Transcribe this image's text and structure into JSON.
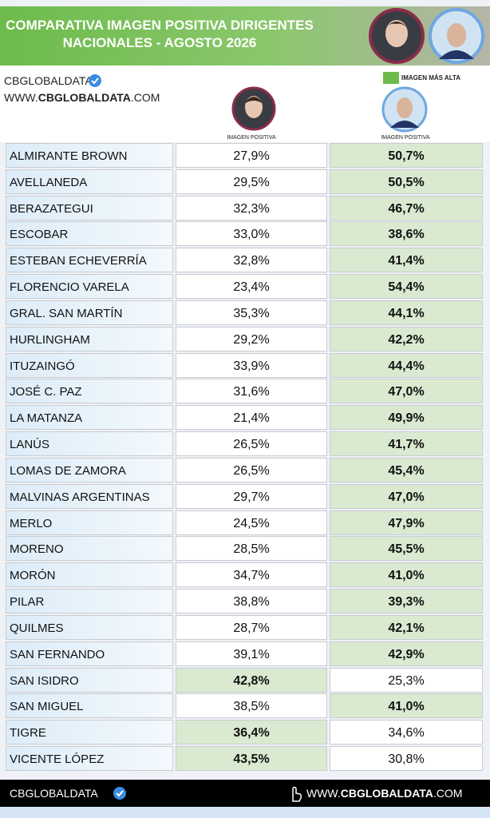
{
  "header": {
    "title_lines": [
      "COMPARATIVA IMAGEN POSITIVA DIRIGENTES",
      "NACIONALES - AGOSTO  2026"
    ]
  },
  "brand": {
    "name": "CBGLOBALDATA",
    "website": [
      "WWW.",
      "CBGLOBALDATA",
      ".COM"
    ]
  },
  "legend": {
    "label": "IMAGEN MÁS ALTA"
  },
  "columns": [
    "IMAGEN POSITIVA",
    "IMAGEN POSITIVA"
  ],
  "table": {
    "rows": [
      [
        "ALMIRANTE BROWN",
        "27,9%",
        "50,7%"
      ],
      [
        "AVELLANEDA",
        "29,5%",
        "50,5%"
      ],
      [
        "BERAZATEGUI",
        "32,3%",
        "46,7%"
      ],
      [
        "ESCOBAR",
        "33,0%",
        "38,6%"
      ],
      [
        "ESTEBAN ECHEVERRÍA",
        "32,8%",
        "41,4%"
      ],
      [
        "FLORENCIO VARELA",
        "23,4%",
        "54,4%"
      ],
      [
        "GRAL. SAN MARTÍN",
        "35,3%",
        "44,1%"
      ],
      [
        "HURLINGHAM",
        "29,2%",
        "42,2%"
      ],
      [
        "ITUZAINGÓ",
        "33,9%",
        "44,4%"
      ],
      [
        "JOSÉ C. PAZ",
        "31,6%",
        "47,0%"
      ],
      [
        "LA MATANZA",
        "21,4%",
        "49,9%"
      ],
      [
        "LANÚS",
        "26,5%",
        "41,7%"
      ],
      [
        "LOMAS DE ZAMORA",
        "26,5%",
        "45,4%"
      ],
      [
        "MALVINAS ARGENTINAS",
        "29,7%",
        "47,0%"
      ],
      [
        "MERLO",
        "24,5%",
        "47,9%"
      ],
      [
        "MORENO",
        "28,5%",
        "45,5%"
      ],
      [
        "MORÓN",
        "34,7%",
        "41,0%"
      ],
      [
        "PILAR",
        "38,8%",
        "39,3%"
      ],
      [
        "QUILMES",
        "28,7%",
        "42,1%"
      ],
      [
        "SAN FERNANDO",
        "39,1%",
        "42,9%"
      ],
      [
        "SAN ISIDRO",
        "42,8%",
        "25,3%"
      ],
      [
        "SAN MIGUEL",
        "38,5%",
        "41,0%"
      ],
      [
        "TIGRE",
        "36,4%",
        "34,6%"
      ],
      [
        "VICENTE LÓPEZ",
        "43,5%",
        "30,8%"
      ]
    ]
  },
  "footer": {
    "brand": "CBGLOBALDATA",
    "website": [
      "WWW.",
      "CBGLOBALDATA",
      ".COM"
    ]
  }
}
